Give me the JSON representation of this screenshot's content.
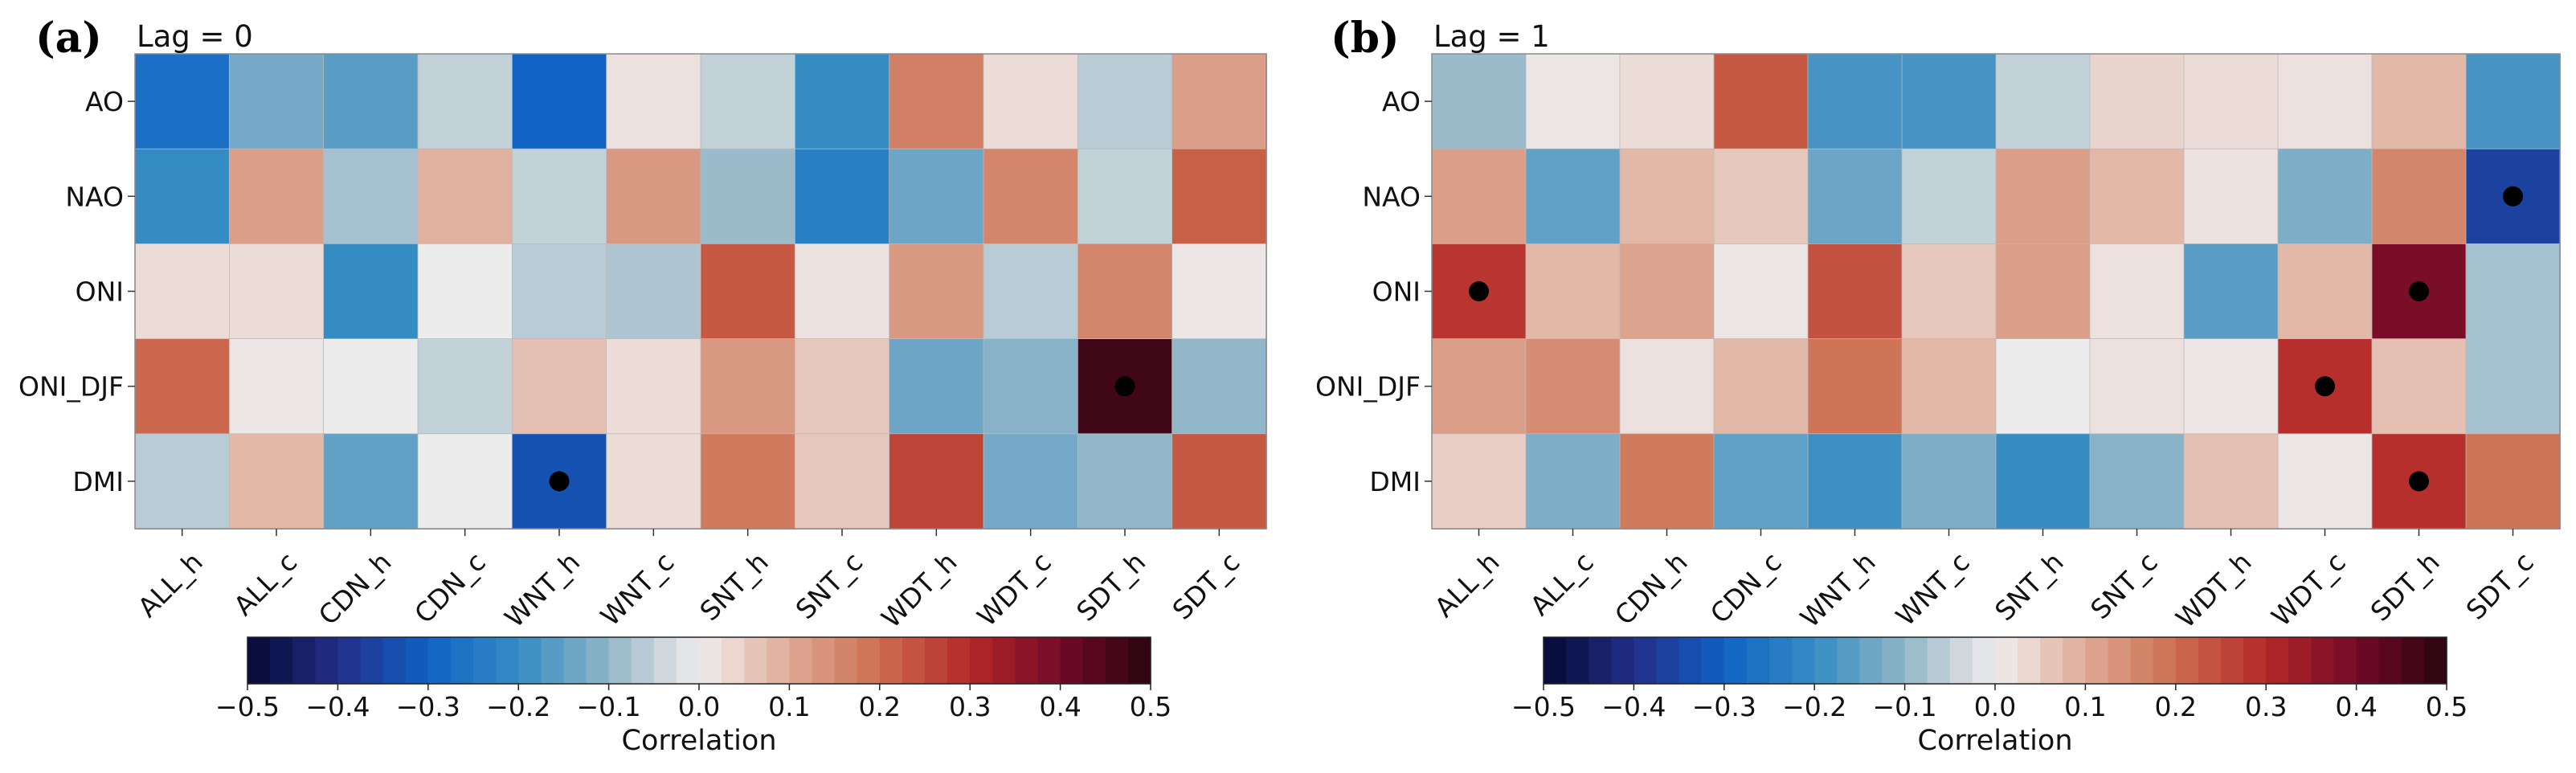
{
  "chart_data": [
    {
      "type": "heatmap",
      "panel_label": "(a)",
      "title": "Lag = 0",
      "rows": [
        "AO",
        "NAO",
        "ONI",
        "ONI_DJF",
        "DMI"
      ],
      "columns": [
        "ALL_h",
        "ALL_c",
        "CDN_h",
        "CDN_c",
        "WNT_h",
        "WNT_c",
        "SNT_h",
        "SNT_c",
        "WDT_h",
        "WDT_c",
        "SDT_h",
        "SDT_c"
      ],
      "values": [
        [
          -0.27,
          -0.13,
          -0.16,
          -0.05,
          -0.3,
          0.02,
          -0.05,
          -0.2,
          0.17,
          0.03,
          -0.06,
          0.12
        ],
        [
          -0.2,
          0.12,
          -0.08,
          0.09,
          -0.05,
          0.13,
          -0.09,
          -0.23,
          -0.14,
          0.16,
          -0.05,
          0.22
        ],
        [
          0.03,
          0.03,
          -0.2,
          0.0,
          -0.06,
          -0.07,
          0.23,
          0.02,
          0.13,
          -0.06,
          0.16,
          0.01
        ],
        [
          0.21,
          0.01,
          0.0,
          -0.05,
          0.07,
          0.03,
          0.13,
          0.06,
          -0.14,
          -0.11,
          0.47,
          -0.1
        ],
        [
          -0.06,
          0.08,
          -0.15,
          0.0,
          -0.33,
          0.03,
          0.18,
          0.06,
          0.26,
          -0.13,
          -0.1,
          0.23
        ]
      ],
      "significant": [
        [
          3,
          10
        ],
        [
          4,
          4
        ]
      ],
      "colorbar": {
        "label": "Correlation",
        "range": [
          -0.5,
          0.5
        ],
        "ticks": [
          "−0.5",
          "−0.4",
          "−0.3",
          "−0.2",
          "−0.1",
          "0.0",
          "0.1",
          "0.2",
          "0.3",
          "0.4",
          "0.5"
        ],
        "colormap": "RdBu_r",
        "levels": 40
      }
    },
    {
      "type": "heatmap",
      "panel_label": "(b)",
      "title": "Lag = 1",
      "rows": [
        "AO",
        "NAO",
        "ONI",
        "ONI_DJF",
        "DMI"
      ],
      "columns": [
        "ALL_h",
        "ALL_c",
        "CDN_h",
        "CDN_c",
        "WNT_h",
        "WNT_c",
        "SNT_h",
        "SNT_c",
        "WDT_h",
        "WDT_c",
        "SDT_h",
        "SDT_c"
      ],
      "values": [
        [
          -0.09,
          0.01,
          0.03,
          0.23,
          -0.18,
          -0.18,
          -0.05,
          0.04,
          0.03,
          0.02,
          0.08,
          -0.18
        ],
        [
          0.12,
          -0.15,
          0.08,
          0.06,
          -0.14,
          -0.05,
          0.12,
          0.08,
          0.02,
          -0.12,
          0.16,
          -0.36
        ],
        [
          0.28,
          0.08,
          0.11,
          0.01,
          0.24,
          0.06,
          0.12,
          0.02,
          -0.16,
          0.08,
          0.39,
          -0.08
        ],
        [
          0.12,
          0.15,
          0.02,
          0.08,
          0.19,
          0.08,
          0.0,
          0.02,
          0.01,
          0.29,
          0.07,
          -0.08
        ],
        [
          0.05,
          -0.12,
          0.18,
          -0.15,
          -0.19,
          -0.12,
          -0.2,
          -0.11,
          0.07,
          0.01,
          0.29,
          0.19
        ]
      ],
      "significant": [
        [
          1,
          11
        ],
        [
          2,
          0
        ],
        [
          2,
          10
        ],
        [
          3,
          9
        ],
        [
          4,
          10
        ]
      ],
      "colorbar": {
        "label": "Correlation",
        "range": [
          -0.5,
          0.5
        ],
        "ticks": [
          "−0.5",
          "−0.4",
          "−0.3",
          "−0.2",
          "−0.1",
          "0.0",
          "0.1",
          "0.2",
          "0.3",
          "0.4",
          "0.5"
        ],
        "colormap": "RdBu_r",
        "levels": 40
      }
    }
  ]
}
